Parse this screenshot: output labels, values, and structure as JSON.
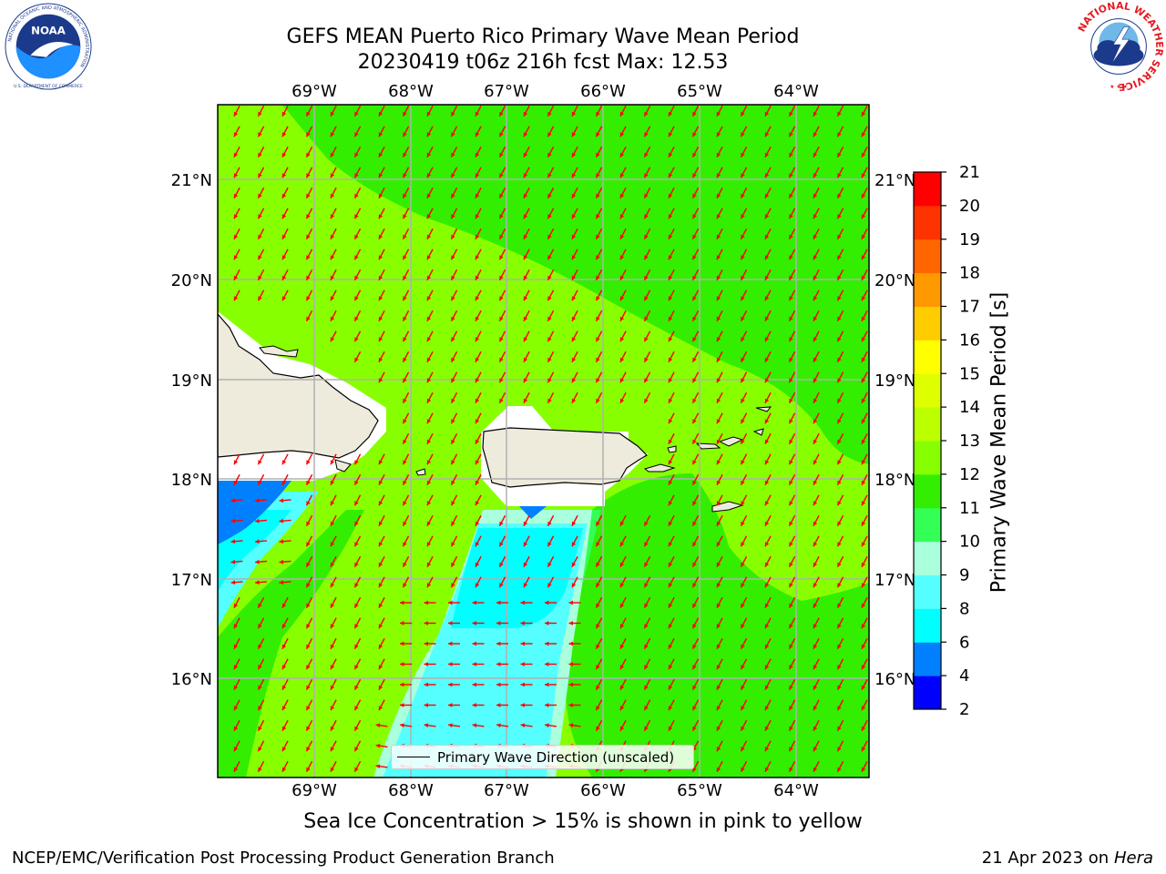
{
  "title": {
    "line1": "GEFS MEAN Puerto Rico Primary Wave Mean Period",
    "line2": "20230419 t06z 216h fcst   Max: 12.53"
  },
  "logos": {
    "left": {
      "name": "NOAA",
      "ring_text": "NATIONAL OCEANIC AND ATMOSPHERIC ADMINISTRATION",
      "bottom_text": "U.S. DEPARTMENT OF COMMERCE"
    },
    "right": {
      "name": "NATIONAL WEATHER SERVICE"
    }
  },
  "map": {
    "lon_labels": [
      "69°W",
      "68°W",
      "67°W",
      "66°W",
      "65°W",
      "64°W"
    ],
    "lat_labels": [
      "21°N",
      "20°N",
      "19°N",
      "18°N",
      "17°N",
      "16°N"
    ],
    "legend": "Primary Wave Direction (unscaled)",
    "colors": {
      "land": "#eeebdc",
      "arrow": "#ff0000",
      "gridline": "#b0b0b0"
    }
  },
  "colorbar": {
    "label": "Primary Wave Mean Period [s]",
    "ticks": [
      "2",
      "4",
      "6",
      "8",
      "9",
      "10",
      "11",
      "12",
      "13",
      "14",
      "15",
      "16",
      "17",
      "18",
      "19",
      "20",
      "21"
    ],
    "colors": [
      "#0000ff",
      "#0080ff",
      "#00ffff",
      "#55ffff",
      "#aaffdd",
      "#33ff55",
      "#33ee00",
      "#88ff00",
      "#bbff00",
      "#ddff00",
      "#ffff00",
      "#ffcc00",
      "#ff9900",
      "#ff6600",
      "#ff3300",
      "#ff0000"
    ]
  },
  "footer": {
    "note": "Sea Ice Concentration > 15% is shown in pink to yellow",
    "left": "NCEP/EMC/Verification Post Processing Product Generation Branch",
    "right_date": "21 Apr 2023 on ",
    "right_host": "Hera"
  }
}
